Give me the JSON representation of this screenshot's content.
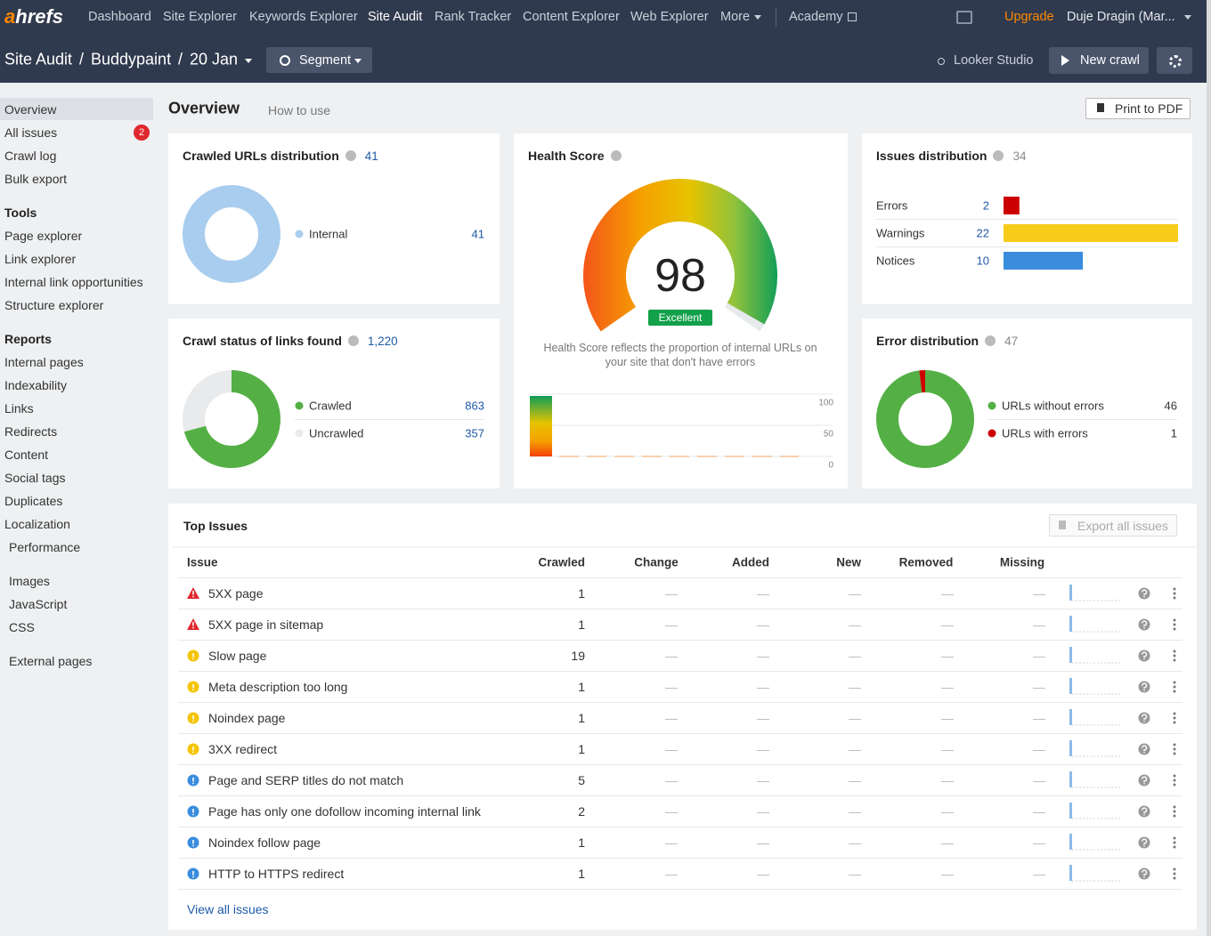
{
  "nav": {
    "logo": "ahrefs",
    "items": [
      "Dashboard",
      "Site Explorer",
      "Keywords Explorer",
      "Site Audit",
      "Rank Tracker",
      "Content Explorer",
      "Web Explorer",
      "More",
      "Academy"
    ],
    "upgrade": "Upgrade",
    "user": "Duje Dragin (Mar..."
  },
  "subheader": {
    "breadcrumb": [
      "Site Audit",
      "Buddypaint",
      "20 Jan"
    ],
    "separator": "/",
    "segment": "Segment",
    "looker": "Looker Studio",
    "new_crawl": "New crawl"
  },
  "sidebar": {
    "main": [
      "Overview",
      "All issues",
      "Crawl log",
      "Bulk export"
    ],
    "badge": 2,
    "tools_title": "Tools",
    "tools": [
      "Page explorer",
      "Link explorer",
      "Internal link opportunities",
      "Structure explorer"
    ],
    "reports_title": "Reports",
    "reports": [
      "Internal pages",
      "Indexability",
      "Links",
      "Redirects",
      "Content",
      "Social tags",
      "Duplicates",
      "Localization"
    ],
    "reports_sub": [
      "Performance",
      "Images",
      "JavaScript",
      "CSS",
      "External pages"
    ]
  },
  "page": {
    "title": "Overview",
    "how_to_use": "How to use",
    "print": "Print to PDF"
  },
  "crawled_urls": {
    "title": "Crawled URLs distribution",
    "total": 41,
    "items": [
      {
        "name": "Internal",
        "value": 41,
        "color": "#a9cdee"
      }
    ]
  },
  "crawl_status": {
    "title": "Crawl status of links found",
    "total": "1,220",
    "items": [
      {
        "name": "Crawled",
        "value": 863,
        "color": "#54b045"
      },
      {
        "name": "Uncrawled",
        "value": 357,
        "color": "#e8eaec"
      }
    ]
  },
  "health": {
    "title": "Health Score",
    "score": 98,
    "label": "Excellent",
    "description": "Health Score reflects the proportion of internal URLs on your site that don't have errors",
    "history_yticks": [
      100,
      50,
      0
    ]
  },
  "issues_distribution": {
    "title": "Issues distribution",
    "total": 34,
    "items": [
      {
        "name": "Errors",
        "value": 2,
        "color": "#cc0000"
      },
      {
        "name": "Warnings",
        "value": 22,
        "color": "#f8cc1b"
      },
      {
        "name": "Notices",
        "value": 10,
        "color": "#3a8ddd"
      }
    ]
  },
  "error_distribution": {
    "title": "Error distribution",
    "total": 47,
    "items": [
      {
        "name": "URLs without errors",
        "value": 46,
        "color": "#54b045"
      },
      {
        "name": "URLs with errors",
        "value": 1,
        "color": "#cc0000"
      }
    ]
  },
  "top_issues": {
    "title": "Top Issues",
    "export": "Export all issues",
    "columns": [
      "Issue",
      "Crawled",
      "Change",
      "Added",
      "New",
      "Removed",
      "Missing"
    ],
    "rows": [
      {
        "severity": "error",
        "cells": [
          "5XX page",
          1,
          "—",
          "—",
          "—",
          "—",
          "—"
        ]
      },
      {
        "severity": "error",
        "cells": [
          "5XX page in sitemap",
          1,
          "—",
          "—",
          "—",
          "—",
          "—"
        ]
      },
      {
        "severity": "warning",
        "cells": [
          "Slow page",
          19,
          "—",
          "—",
          "—",
          "—",
          "—"
        ]
      },
      {
        "severity": "warning",
        "cells": [
          "Meta description too long",
          1,
          "—",
          "—",
          "—",
          "—",
          "—"
        ]
      },
      {
        "severity": "warning",
        "cells": [
          "Noindex page",
          1,
          "—",
          "—",
          "—",
          "—",
          "—"
        ]
      },
      {
        "severity": "warning",
        "cells": [
          "3XX redirect",
          1,
          "—",
          "—",
          "—",
          "—",
          "—"
        ]
      },
      {
        "severity": "notice",
        "cells": [
          "Page and SERP titles do not match",
          5,
          "—",
          "—",
          "—",
          "—",
          "—"
        ]
      },
      {
        "severity": "notice",
        "cells": [
          "Page has only one dofollow incoming internal link",
          2,
          "—",
          "—",
          "—",
          "—",
          "—"
        ]
      },
      {
        "severity": "notice",
        "cells": [
          "Noindex follow page",
          1,
          "—",
          "—",
          "—",
          "—",
          "—"
        ]
      },
      {
        "severity": "notice",
        "cells": [
          "HTTP to HTTPS redirect",
          1,
          "—",
          "—",
          "—",
          "—",
          "—"
        ]
      }
    ],
    "view_all": "View all issues"
  }
}
